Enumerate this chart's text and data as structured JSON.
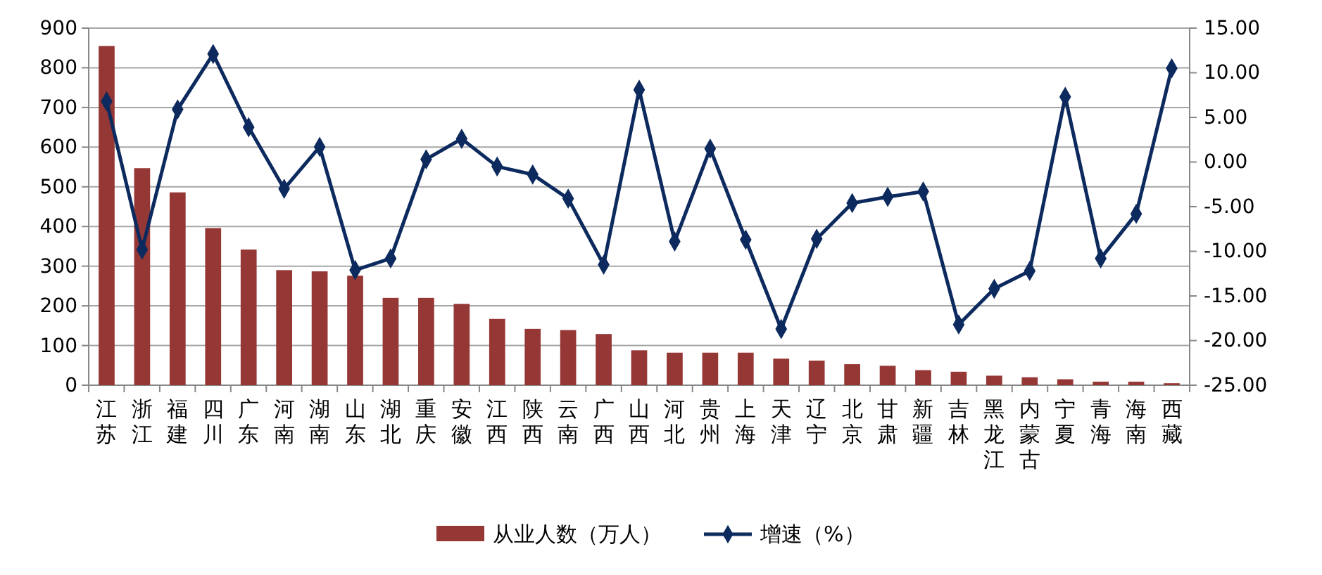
{
  "chart_data": {
    "type": "bar",
    "categories": [
      "江苏",
      "浙江",
      "福建",
      "四川",
      "广东",
      "河南",
      "湖南",
      "山东",
      "湖北",
      "重庆",
      "安徽",
      "江西",
      "陕西",
      "云南",
      "广西",
      "山西",
      "河北",
      "贵州",
      "上海",
      "天津",
      "辽宁",
      "北京",
      "甘肃",
      "新疆",
      "吉林",
      "黑龙江",
      "内蒙古",
      "宁夏",
      "青海",
      "海南",
      "西藏"
    ],
    "series": [
      {
        "name": "从业人数（万人）",
        "color": "#953735",
        "values": [
          855,
          547,
          486,
          396,
          342,
          290,
          287,
          276,
          220,
          220,
          205,
          167,
          142,
          139,
          129,
          88,
          82,
          82,
          82,
          67,
          62,
          53,
          49,
          38,
          34,
          24,
          20,
          15,
          9,
          9,
          5
        ]
      },
      {
        "name": "增速（%）",
        "type": "line",
        "axis": "y2",
        "color": "#0d2a5e",
        "values": [
          6.8,
          -9.8,
          5.9,
          12.1,
          3.9,
          -3.0,
          1.7,
          -12.1,
          -10.8,
          0.3,
          2.6,
          -0.5,
          -1.4,
          -4.1,
          -11.5,
          8.1,
          -8.9,
          1.5,
          -8.7,
          -18.7,
          -8.6,
          -4.6,
          -3.9,
          -3.3,
          -18.2,
          -14.2,
          -12.2,
          7.3,
          -10.8,
          -5.8,
          10.5
        ]
      }
    ],
    "ylim": [
      0,
      900
    ],
    "yticks": [
      0,
      100,
      200,
      300,
      400,
      500,
      600,
      700,
      800,
      900
    ],
    "y2lim": [
      -25,
      15
    ],
    "y2ticks": [
      {
        "value": -25,
        "label": "-25.00"
      },
      {
        "value": -20,
        "label": "-20.00"
      },
      {
        "value": -15,
        "label": "-15.00"
      },
      {
        "value": -10,
        "label": "-10.00"
      },
      {
        "value": -5,
        "label": "-5.00"
      },
      {
        "value": 0,
        "label": "0.00"
      },
      {
        "value": 5,
        "label": "5.00"
      },
      {
        "value": 10,
        "label": "10.00"
      },
      {
        "value": 15,
        "label": "15.00"
      }
    ],
    "grid": "y",
    "legend": "bottom",
    "marker": "diamond",
    "line_style": "solid"
  }
}
